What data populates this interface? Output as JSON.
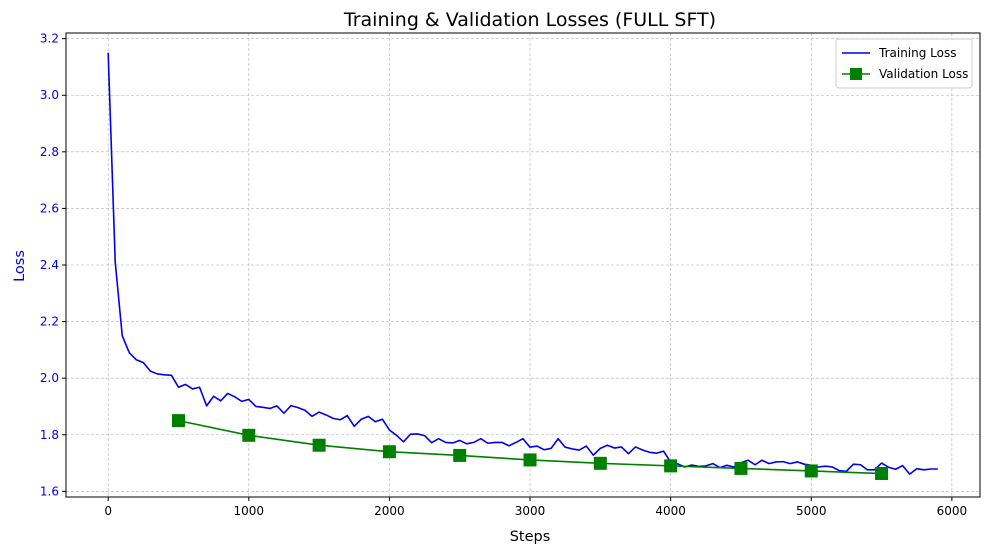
{
  "colors": {
    "training": "#0000ee",
    "validation": "#008000",
    "ylabel": "#0000ee",
    "yticks": "#0000ee",
    "grid": "#b0b0b0",
    "axis": "#000000"
  },
  "chart_data": {
    "type": "line",
    "title": "Training & Validation Losses (FULL SFT)",
    "xlabel": "Steps",
    "ylabel": "Loss",
    "xlim": [
      -300,
      6200
    ],
    "ylim": [
      1.58,
      3.22
    ],
    "xticks": [
      0,
      1000,
      2000,
      3000,
      4000,
      5000,
      6000
    ],
    "xtick_labels": [
      "0",
      "1000",
      "2000",
      "3000",
      "4000",
      "5000",
      "6000"
    ],
    "yticks": [
      1.6,
      1.8,
      2.0,
      2.2,
      2.4,
      2.6,
      2.8,
      3.0,
      3.2
    ],
    "ytick_labels": [
      "1.6",
      "1.8",
      "2.0",
      "2.2",
      "2.4",
      "2.6",
      "2.8",
      "3.0",
      "3.2"
    ],
    "grid": true,
    "legend_position": "top-right",
    "series": [
      {
        "name": "Training Loss",
        "marker": "none",
        "x": [
          0,
          50,
          100,
          150,
          200,
          250,
          300,
          350,
          400,
          450,
          500,
          550,
          600,
          650,
          700,
          750,
          800,
          850,
          900,
          950,
          1000,
          1050,
          1100,
          1150,
          1200,
          1250,
          1300,
          1350,
          1400,
          1450,
          1500,
          1550,
          1600,
          1650,
          1700,
          1750,
          1800,
          1850,
          1900,
          1950,
          2000,
          2050,
          2100,
          2150,
          2200,
          2250,
          2300,
          2350,
          2400,
          2450,
          2500,
          2550,
          2600,
          2650,
          2700,
          2750,
          2800,
          2850,
          2900,
          2950,
          3000,
          3050,
          3100,
          3150,
          3200,
          3250,
          3300,
          3350,
          3400,
          3450,
          3500,
          3550,
          3600,
          3650,
          3700,
          3750,
          3800,
          3850,
          3900,
          3950,
          4000,
          4050,
          4100,
          4150,
          4200,
          4250,
          4300,
          4350,
          4400,
          4450,
          4500,
          4550,
          4600,
          4650,
          4700,
          4750,
          4800,
          4850,
          4900,
          4950,
          5000,
          5050,
          5100,
          5150,
          5200,
          5250,
          5300,
          5350,
          5400,
          5450,
          5500,
          5550,
          5600,
          5650,
          5700,
          5750,
          5800,
          5850,
          5900
        ],
        "y": [
          3.15,
          2.41,
          2.15,
          2.09,
          2.065,
          2.055,
          2.025,
          2.015,
          2.012,
          2.01,
          1.968,
          1.978,
          1.962,
          1.968,
          1.902,
          1.936,
          1.92,
          1.946,
          1.934,
          1.918,
          1.925,
          1.9,
          1.897,
          1.893,
          1.902,
          1.876,
          1.903,
          1.896,
          1.886,
          1.865,
          1.88,
          1.87,
          1.858,
          1.853,
          1.868,
          1.83,
          1.855,
          1.865,
          1.846,
          1.855,
          1.817,
          1.798,
          1.775,
          1.802,
          1.803,
          1.797,
          1.772,
          1.786,
          1.773,
          1.771,
          1.78,
          1.768,
          1.773,
          1.786,
          1.77,
          1.773,
          1.773,
          1.761,
          1.773,
          1.786,
          1.756,
          1.76,
          1.747,
          1.752,
          1.786,
          1.756,
          1.75,
          1.746,
          1.76,
          1.728,
          1.752,
          1.763,
          1.753,
          1.757,
          1.733,
          1.757,
          1.746,
          1.738,
          1.735,
          1.742,
          1.703,
          1.697,
          1.686,
          1.693,
          1.688,
          1.69,
          1.698,
          1.684,
          1.692,
          1.686,
          1.701,
          1.71,
          1.694,
          1.71,
          1.698,
          1.704,
          1.705,
          1.698,
          1.704,
          1.696,
          1.692,
          1.686,
          1.689,
          1.686,
          1.673,
          1.671,
          1.696,
          1.694,
          1.676,
          1.676,
          1.7,
          1.685,
          1.678,
          1.691,
          1.661,
          1.68,
          1.676,
          1.679,
          1.679
        ]
      },
      {
        "name": "Validation Loss",
        "marker": "square",
        "x": [
          500,
          1000,
          1500,
          2000,
          2500,
          3000,
          3500,
          4000,
          4500,
          5000,
          5500
        ],
        "y": [
          1.85,
          1.798,
          1.763,
          1.74,
          1.727,
          1.711,
          1.699,
          1.69,
          1.681,
          1.672,
          1.663
        ]
      }
    ]
  }
}
